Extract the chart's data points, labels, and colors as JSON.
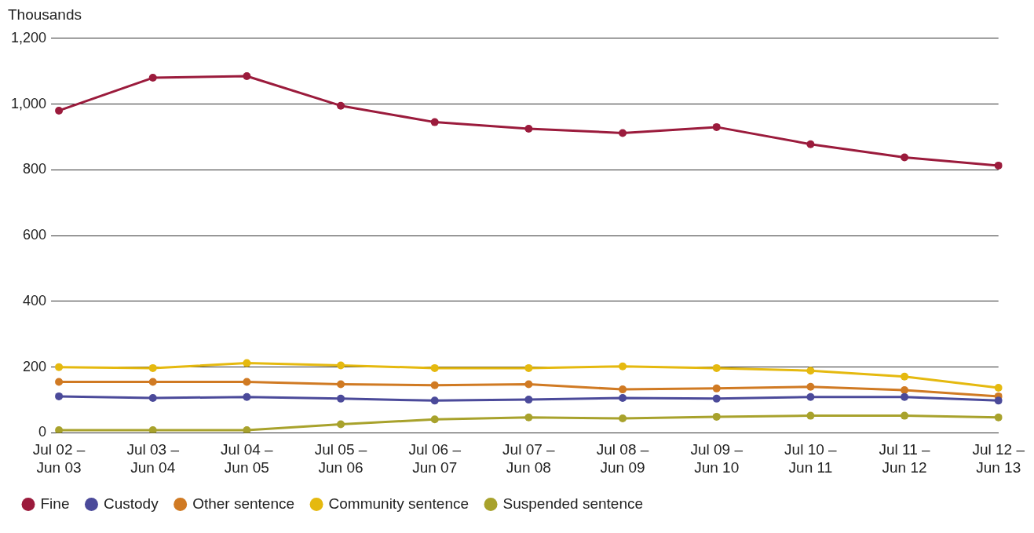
{
  "chart_data": {
    "type": "line",
    "ylabel": "Thousands",
    "categories": [
      "Jul 02 – Jun 03",
      "Jul 03 – Jun 04",
      "Jul 04 – Jun 05",
      "Jul 05 – Jun 06",
      "Jul 06 – Jun 07",
      "Jul 07 – Jun 08",
      "Jul 08 – Jun 09",
      "Jul 09 – Jun 10",
      "Jul 10 – Jun 11",
      "Jul 11 – Jun 12",
      "Jul 12 – Jun 13"
    ],
    "series": [
      {
        "name": "Fine",
        "color": "#9b1b3c",
        "values": [
          980,
          1080,
          1085,
          995,
          945,
          925,
          912,
          930,
          878,
          838,
          813
        ]
      },
      {
        "name": "Custody",
        "color": "#4b4a9a",
        "values": [
          111,
          106,
          109,
          104,
          98,
          101,
          106,
          104,
          109,
          109,
          98
        ]
      },
      {
        "name": "Other sentence",
        "color": "#d07a23",
        "values": [
          155,
          155,
          155,
          148,
          145,
          148,
          132,
          135,
          140,
          130,
          111
        ]
      },
      {
        "name": "Community sentence",
        "color": "#e5b90f",
        "values": [
          200,
          197,
          212,
          205,
          197,
          197,
          202,
          197,
          189,
          171,
          137
        ]
      },
      {
        "name": "Suspended sentence",
        "color": "#a8a22c",
        "values": [
          8,
          8,
          8,
          26,
          41,
          47,
          44,
          49,
          52,
          52,
          47
        ]
      }
    ],
    "ylim": [
      0,
      1200
    ],
    "yticks": [
      0,
      200,
      400,
      600,
      800,
      {
        "value": 1000,
        "label": "1,000"
      },
      {
        "value": 1200,
        "label": "1,200"
      }
    ],
    "grid": "y",
    "legend": "bottom",
    "marker": "circle",
    "line_style": "solid"
  }
}
